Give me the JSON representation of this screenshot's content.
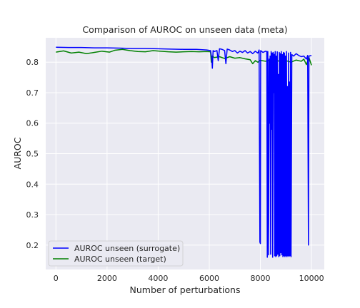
{
  "chart_data": {
    "type": "line",
    "title": "Comparison of AUROC on unseen data (meta)",
    "xlabel": "Number of perturbations",
    "ylabel": "AUROC",
    "xlim": [
      -400,
      10500
    ],
    "ylim": [
      0.12,
      0.88
    ],
    "xticks": [
      0,
      2000,
      4000,
      6000,
      8000,
      10000
    ],
    "yticks": [
      0.2,
      0.3,
      0.4,
      0.5,
      0.6,
      0.7,
      0.8
    ],
    "grid": true,
    "legend_position": "lower-left",
    "series": [
      {
        "name": "AUROC unseen (surrogate)",
        "color": "#0000ff",
        "points": [
          [
            0,
            0.849
          ],
          [
            500,
            0.848
          ],
          [
            1000,
            0.848
          ],
          [
            1500,
            0.847
          ],
          [
            2000,
            0.847
          ],
          [
            2500,
            0.846
          ],
          [
            3000,
            0.845
          ],
          [
            3500,
            0.845
          ],
          [
            4000,
            0.844
          ],
          [
            4500,
            0.843
          ],
          [
            5000,
            0.842
          ],
          [
            5500,
            0.842
          ],
          [
            5900,
            0.84
          ],
          [
            6050,
            0.838
          ],
          [
            6100,
            0.81
          ],
          [
            6120,
            0.78
          ],
          [
            6150,
            0.838
          ],
          [
            6200,
            0.835
          ],
          [
            6300,
            0.838
          ],
          [
            6350,
            0.805
          ],
          [
            6400,
            0.844
          ],
          [
            6500,
            0.842
          ],
          [
            6600,
            0.838
          ],
          [
            6650,
            0.795
          ],
          [
            6700,
            0.843
          ],
          [
            6800,
            0.84
          ],
          [
            6900,
            0.835
          ],
          [
            7000,
            0.838
          ],
          [
            7100,
            0.83
          ],
          [
            7200,
            0.836
          ],
          [
            7300,
            0.832
          ],
          [
            7400,
            0.838
          ],
          [
            7500,
            0.83
          ],
          [
            7600,
            0.835
          ],
          [
            7700,
            0.828
          ],
          [
            7800,
            0.836
          ],
          [
            7900,
            0.83
          ],
          [
            7950,
            0.84
          ],
          [
            7980,
            0.21
          ],
          [
            8000,
            0.205
          ],
          [
            8010,
            0.838
          ],
          [
            8100,
            0.832
          ],
          [
            8200,
            0.836
          ],
          [
            8250,
            0.835
          ],
          [
            8270,
            0.16
          ],
          [
            8290,
            0.835
          ],
          [
            8320,
            0.168
          ],
          [
            8340,
            0.81
          ],
          [
            8360,
            0.6
          ],
          [
            8380,
            0.82
          ],
          [
            8400,
            0.17
          ],
          [
            8420,
            0.835
          ],
          [
            8440,
            0.58
          ],
          [
            8460,
            0.83
          ],
          [
            8480,
            0.16
          ],
          [
            8500,
            0.832
          ],
          [
            8520,
            0.7
          ],
          [
            8540,
            0.826
          ],
          [
            8560,
            0.165
          ],
          [
            8580,
            0.835
          ],
          [
            8600,
            0.162
          ],
          [
            8620,
            0.82
          ],
          [
            8640,
            0.165
          ],
          [
            8660,
            0.834
          ],
          [
            8680,
            0.17
          ],
          [
            8700,
            0.76
          ],
          [
            8720,
            0.162
          ],
          [
            8740,
            0.832
          ],
          [
            8760,
            0.165
          ],
          [
            8780,
            0.828
          ],
          [
            8800,
            0.175
          ],
          [
            8820,
            0.835
          ],
          [
            8840,
            0.168
          ],
          [
            8860,
            0.825
          ],
          [
            8880,
            0.162
          ],
          [
            8900,
            0.832
          ],
          [
            8920,
            0.165
          ],
          [
            8940,
            0.83
          ],
          [
            8960,
            0.162
          ],
          [
            8980,
            0.82
          ],
          [
            9000,
            0.165
          ],
          [
            9020,
            0.835
          ],
          [
            9040,
            0.162
          ],
          [
            9060,
            0.72
          ],
          [
            9080,
            0.165
          ],
          [
            9100,
            0.83
          ],
          [
            9120,
            0.163
          ],
          [
            9140,
            0.735
          ],
          [
            9160,
            0.165
          ],
          [
            9180,
            0.832
          ],
          [
            9200,
            0.162
          ],
          [
            9230,
            0.825
          ],
          [
            9300,
            0.82
          ],
          [
            9400,
            0.828
          ],
          [
            9500,
            0.822
          ],
          [
            9600,
            0.818
          ],
          [
            9700,
            0.82
          ],
          [
            9800,
            0.81
          ],
          [
            9850,
            0.822
          ],
          [
            9880,
            0.2
          ],
          [
            9900,
            0.82
          ],
          [
            10000,
            0.822
          ]
        ]
      },
      {
        "name": "AUROC unseen (target)",
        "color": "#008000",
        "points": [
          [
            0,
            0.833
          ],
          [
            300,
            0.837
          ],
          [
            600,
            0.83
          ],
          [
            900,
            0.833
          ],
          [
            1200,
            0.828
          ],
          [
            1500,
            0.832
          ],
          [
            1800,
            0.836
          ],
          [
            2100,
            0.833
          ],
          [
            2300,
            0.839
          ],
          [
            2600,
            0.842
          ],
          [
            2900,
            0.838
          ],
          [
            3200,
            0.835
          ],
          [
            3500,
            0.834
          ],
          [
            3800,
            0.838
          ],
          [
            4100,
            0.836
          ],
          [
            4400,
            0.834
          ],
          [
            4700,
            0.833
          ],
          [
            5000,
            0.834
          ],
          [
            5300,
            0.835
          ],
          [
            5600,
            0.834
          ],
          [
            5900,
            0.835
          ],
          [
            6050,
            0.834
          ],
          [
            6080,
            0.8
          ],
          [
            6120,
            0.82
          ],
          [
            6200,
            0.815
          ],
          [
            6400,
            0.818
          ],
          [
            6600,
            0.812
          ],
          [
            6800,
            0.818
          ],
          [
            7000,
            0.813
          ],
          [
            7200,
            0.815
          ],
          [
            7400,
            0.811
          ],
          [
            7600,
            0.808
          ],
          [
            7700,
            0.795
          ],
          [
            7800,
            0.805
          ],
          [
            7900,
            0.8
          ],
          [
            8000,
            0.806
          ],
          [
            8200,
            0.803
          ],
          [
            8400,
            0.808
          ],
          [
            8500,
            0.8
          ],
          [
            8600,
            0.806
          ],
          [
            8800,
            0.802
          ],
          [
            9000,
            0.805
          ],
          [
            9200,
            0.8
          ],
          [
            9400,
            0.807
          ],
          [
            9600,
            0.803
          ],
          [
            9700,
            0.81
          ],
          [
            9800,
            0.792
          ],
          [
            9900,
            0.815
          ],
          [
            10000,
            0.79
          ]
        ]
      }
    ]
  }
}
